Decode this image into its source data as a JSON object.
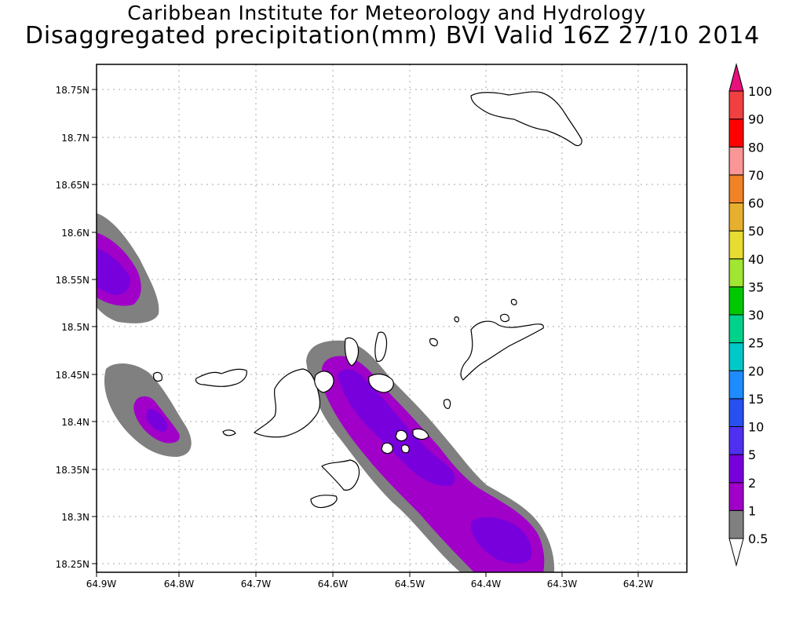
{
  "title": "Caribbean Institute for Meteorology and Hydrology",
  "subtitle": "Disaggregated precipitation(mm) BVI Valid 16Z 27/10 2014",
  "map": {
    "x_ticks": [
      "64.9W",
      "64.8W",
      "64.7W",
      "64.6W",
      "64.5W",
      "64.4W",
      "64.3W",
      "64.2W"
    ],
    "y_ticks": [
      "18.75N",
      "18.7N",
      "18.65N",
      "18.6N",
      "18.55N",
      "18.5N",
      "18.45N",
      "18.4N",
      "18.35N",
      "18.3N",
      "18.25N"
    ],
    "grid": true,
    "coastlines": [
      "Anegada",
      "Tortola",
      "Virgin Gorda",
      "Jost Van Dyke",
      "St. Thomas",
      "St. John",
      "outer cays"
    ]
  },
  "colorbar": {
    "levels": [
      "0.5",
      "1",
      "2",
      "5",
      "10",
      "15",
      "20",
      "25",
      "30",
      "35",
      "40",
      "50",
      "60",
      "70",
      "80",
      "90",
      "100"
    ],
    "colors": [
      "#808080",
      "#a000c8",
      "#7800dc",
      "#5030f0",
      "#2850f0",
      "#1e8cff",
      "#00c8c8",
      "#00d28c",
      "#00c800",
      "#a0e632",
      "#e6dc32",
      "#e6af2d",
      "#f08228",
      "#fa9696",
      "#ff0000",
      "#f04040",
      "#e8107a"
    ],
    "under_color": "#ffffff",
    "over_color": "#e8107a"
  },
  "chart_data": {
    "type": "heatmap",
    "title": "Disaggregated precipitation(mm) BVI Valid 16Z 27/10 2014",
    "xlabel": "",
    "ylabel": "",
    "xlim": [
      "64.9W",
      "64.15W"
    ],
    "ylim": [
      "18.24N",
      "18.79N"
    ],
    "units": "mm",
    "regions": [
      {
        "area": "NW corner near 64.9W 18.55N",
        "max_class": "2-5"
      },
      {
        "area": "SW near 64.84W 18.40N",
        "max_class": "2-5"
      },
      {
        "area": "SE band from 64.58W 18.45N to 64.35W 18.26N",
        "max_class": "2-5"
      }
    ]
  }
}
